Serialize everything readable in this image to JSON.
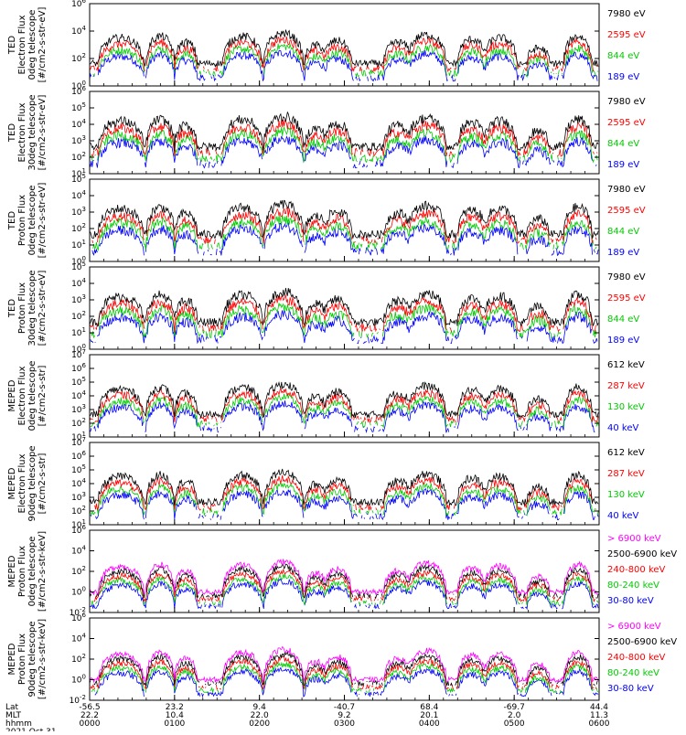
{
  "chart_data": [
    {
      "type": "line",
      "panel": 1,
      "ylabel_lines": [
        "TED",
        "Electron Flux",
        "0deg telescope",
        "[#/cm2-s-str-eV]"
      ],
      "ylim_exp": [
        0,
        6
      ],
      "ytick_exps": [
        0,
        2,
        4,
        6
      ],
      "series": [
        {
          "name": "7980 eV",
          "color": "#000000"
        },
        {
          "name": "2595 eV",
          "color": "#ff0000"
        },
        {
          "name": "844 eV",
          "color": "#00cc00"
        },
        {
          "name": "189 eV",
          "color": "#0000ff"
        }
      ]
    },
    {
      "type": "line",
      "panel": 2,
      "ylabel_lines": [
        "TED",
        "Electron Flux",
        "30deg telescope",
        "[#/cm2-s-str-eV]"
      ],
      "ylim_exp": [
        1,
        6
      ],
      "ytick_exps": [
        1,
        2,
        3,
        4,
        5,
        6
      ],
      "series": [
        {
          "name": "7980 eV",
          "color": "#000000"
        },
        {
          "name": "2595 eV",
          "color": "#ff0000"
        },
        {
          "name": "844 eV",
          "color": "#00cc00"
        },
        {
          "name": "189 eV",
          "color": "#0000ff"
        }
      ]
    },
    {
      "type": "line",
      "panel": 3,
      "ylabel_lines": [
        "TED",
        "Proton Flux",
        "0deg telescope",
        "[#/cm2-s-str-eV]"
      ],
      "ylim_exp": [
        0,
        5
      ],
      "ytick_exps": [
        0,
        1,
        2,
        3,
        4,
        5
      ],
      "series": [
        {
          "name": "7980 eV",
          "color": "#000000"
        },
        {
          "name": "2595 eV",
          "color": "#ff0000"
        },
        {
          "name": "844 eV",
          "color": "#00cc00"
        },
        {
          "name": "189 eV",
          "color": "#0000ff"
        }
      ]
    },
    {
      "type": "line",
      "panel": 4,
      "ylabel_lines": [
        "TED",
        "Proton Flux",
        "30deg telescope",
        "[#/cm2-s-str-eV]"
      ],
      "ylim_exp": [
        0,
        5
      ],
      "ytick_exps": [
        0,
        1,
        2,
        3,
        4,
        5
      ],
      "series": [
        {
          "name": "7980 eV",
          "color": "#000000"
        },
        {
          "name": "2595 eV",
          "color": "#ff0000"
        },
        {
          "name": "844 eV",
          "color": "#00cc00"
        },
        {
          "name": "189 eV",
          "color": "#0000ff"
        }
      ]
    },
    {
      "type": "line",
      "panel": 5,
      "ylabel_lines": [
        "MEPED",
        "Electron Flux",
        "0deg telescope",
        "[#/cm2-s-str]"
      ],
      "ylim_exp": [
        1,
        7
      ],
      "ytick_exps": [
        1,
        2,
        3,
        4,
        5,
        6,
        7
      ],
      "series": [
        {
          "name": "612 keV",
          "color": "#000000"
        },
        {
          "name": "287 keV",
          "color": "#ff0000"
        },
        {
          "name": "130 keV",
          "color": "#00cc00"
        },
        {
          "name": "40 keV",
          "color": "#0000ff"
        }
      ]
    },
    {
      "type": "line",
      "panel": 6,
      "ylabel_lines": [
        "MEPED",
        "Electron Flux",
        "90deg telescope",
        "[#/cm2-s-str]"
      ],
      "ylim_exp": [
        1,
        7
      ],
      "ytick_exps": [
        1,
        2,
        3,
        4,
        5,
        6,
        7
      ],
      "series": [
        {
          "name": "612 keV",
          "color": "#000000"
        },
        {
          "name": "287 keV",
          "color": "#ff0000"
        },
        {
          "name": "130 keV",
          "color": "#00cc00"
        },
        {
          "name": "40 keV",
          "color": "#0000ff"
        }
      ]
    },
    {
      "type": "line",
      "panel": 7,
      "ylabel_lines": [
        "MEPED",
        "Proton Flux",
        "0deg telescope",
        "[#/cm2-s-str-keV]"
      ],
      "ylim_exp": [
        -2,
        6
      ],
      "ytick_exps": [
        -2,
        0,
        2,
        4,
        6
      ],
      "series": [
        {
          "name": "> 6900 keV",
          "color": "#ff00ff"
        },
        {
          "name": "2500-6900 keV",
          "color": "#000000"
        },
        {
          "name": "240-800 keV",
          "color": "#ff0000"
        },
        {
          "name": "80-240 keV",
          "color": "#00cc00"
        },
        {
          "name": "30-80 keV",
          "color": "#0000ff"
        }
      ]
    },
    {
      "type": "line",
      "panel": 8,
      "ylabel_lines": [
        "MEPED",
        "Proton Flux",
        "90deg telescope",
        "[#/cm2-s-str-keV]"
      ],
      "ylim_exp": [
        -2,
        6
      ],
      "ytick_exps": [
        -2,
        0,
        2,
        4,
        6
      ],
      "series": [
        {
          "name": "> 6900 keV",
          "color": "#ff00ff"
        },
        {
          "name": "2500-6900 keV",
          "color": "#000000"
        },
        {
          "name": "240-800 keV",
          "color": "#ff0000"
        },
        {
          "name": "80-240 keV",
          "color": "#00cc00"
        },
        {
          "name": "30-80 keV",
          "color": "#0000ff"
        }
      ]
    }
  ],
  "x_axis": {
    "row_labels": [
      "Lat",
      "MLT",
      "hhmm"
    ],
    "date": "2021 Oct 31",
    "ticks": [
      {
        "lat": "-56.5",
        "mlt": "22.2",
        "hhmm": "0000"
      },
      {
        "lat": "23.2",
        "mlt": "10.4",
        "hhmm": "0100"
      },
      {
        "lat": "9.4",
        "mlt": "22.0",
        "hhmm": "0200"
      },
      {
        "lat": "-40.7",
        "mlt": "9.2",
        "hhmm": "0300"
      },
      {
        "lat": "68.4",
        "mlt": "20.1",
        "hhmm": "0400"
      },
      {
        "lat": "-69.7",
        "mlt": "2.0",
        "hhmm": "0500"
      },
      {
        "lat": "44.4",
        "mlt": "11.3",
        "hhmm": "0600"
      }
    ]
  }
}
